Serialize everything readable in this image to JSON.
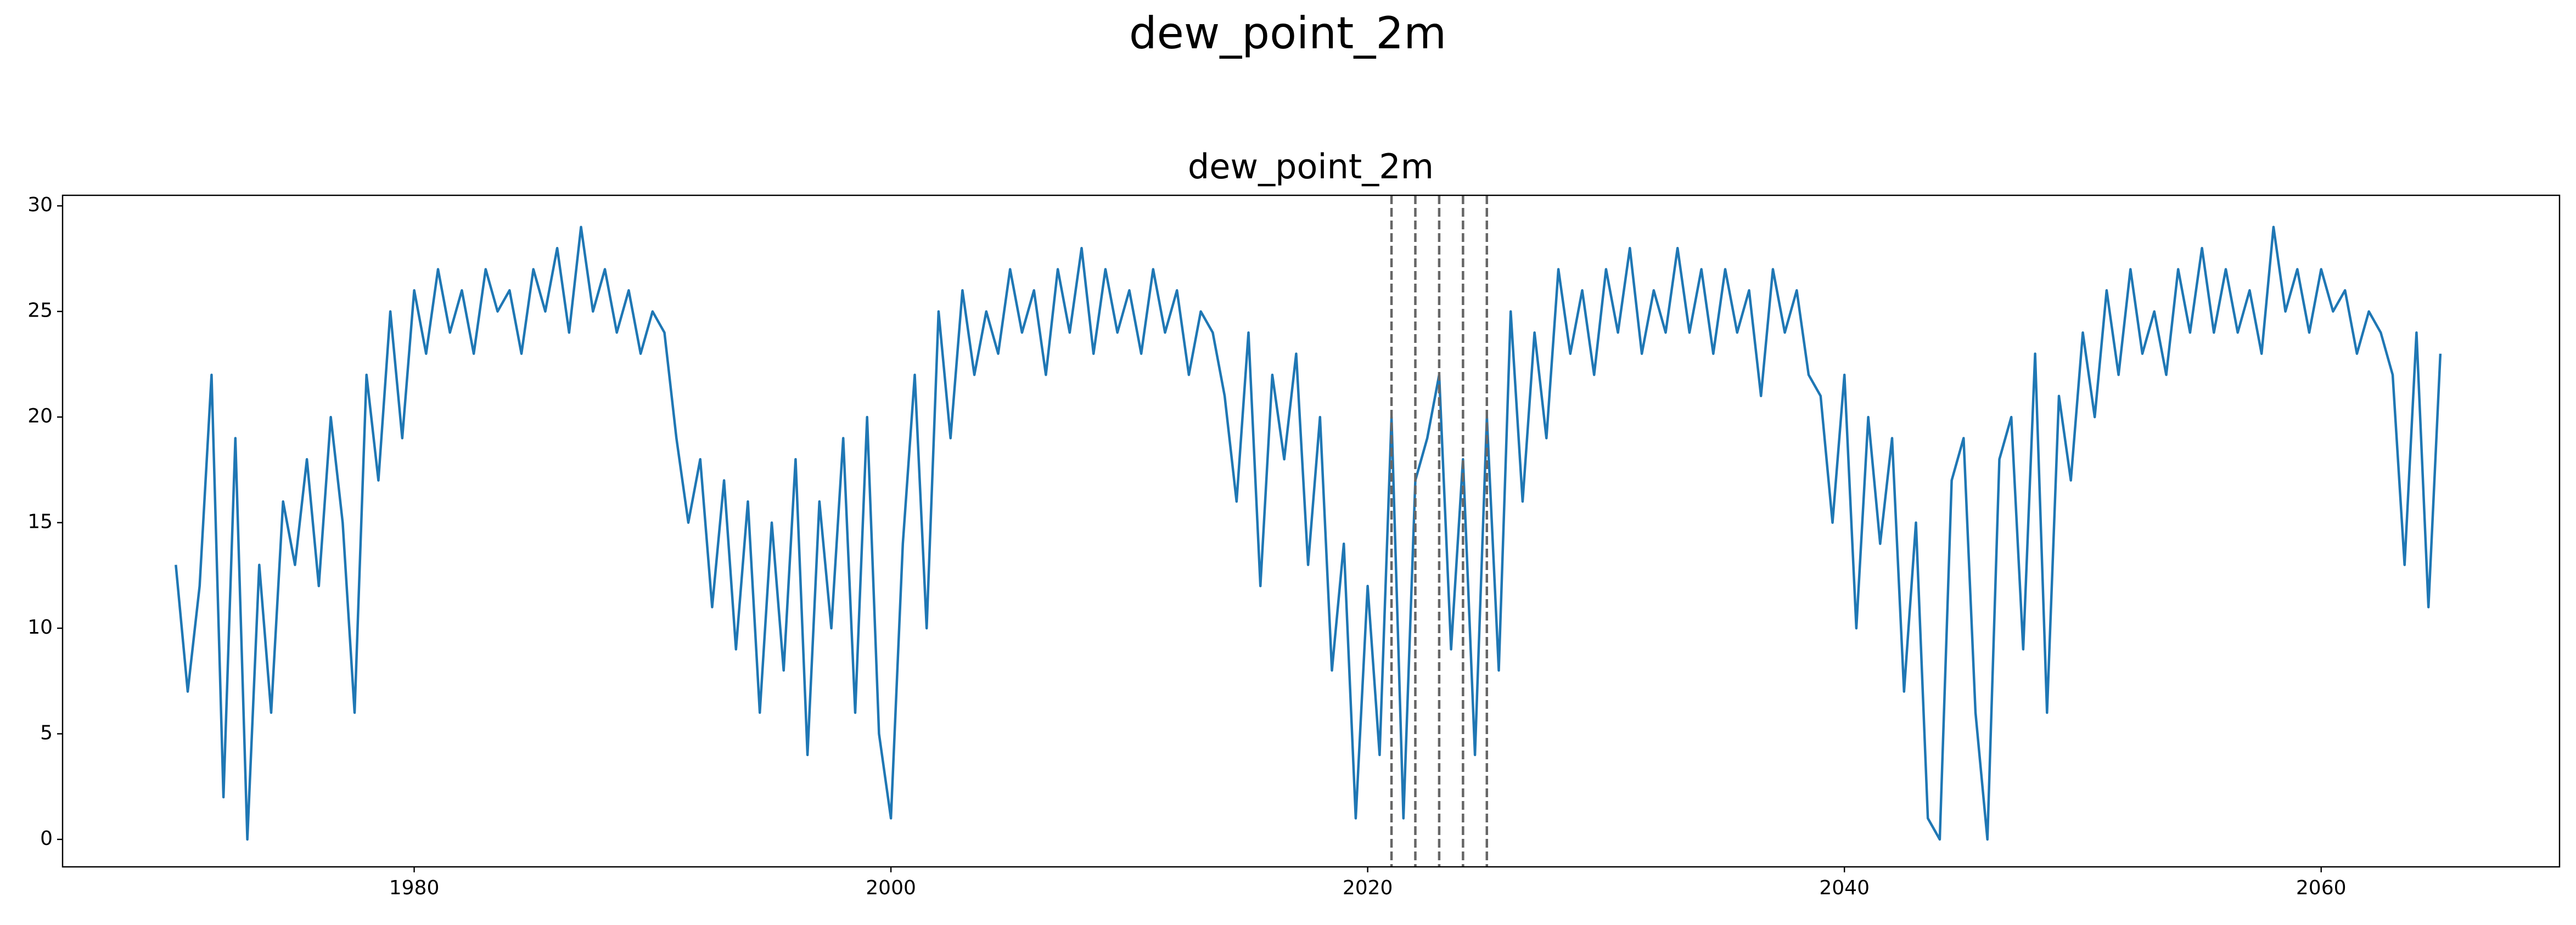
{
  "chart_data": {
    "type": "line",
    "title": "dew_point_2m",
    "subtitle": "dew_point_2m",
    "x": [
      1970.0,
      1970.5,
      1971.0,
      1971.5,
      1972.0,
      1972.5,
      1973.0,
      1973.5,
      1974.0,
      1974.5,
      1975.0,
      1975.5,
      1976.0,
      1976.5,
      1977.0,
      1977.5,
      1978.0,
      1978.5,
      1979.0,
      1979.5,
      1980.0,
      1980.5,
      1981.0,
      1981.5,
      1982.0,
      1982.5,
      1983.0,
      1983.5,
      1984.0,
      1984.5,
      1985.0,
      1985.5,
      1986.0,
      1986.5,
      1987.0,
      1987.5,
      1988.0,
      1988.5,
      1989.0,
      1989.5,
      1990.0,
      1990.5,
      1991.0,
      1991.5,
      1992.0,
      1992.5,
      1993.0,
      1993.5,
      1994.0,
      1994.5,
      1995.0,
      1995.5,
      1996.0,
      1996.5,
      1997.0,
      1997.5,
      1998.0,
      1998.5,
      1999.0,
      1999.5,
      2000.0,
      2000.5,
      2001.0,
      2001.5,
      2002.0,
      2002.5,
      2003.0,
      2003.5,
      2004.0,
      2004.5,
      2005.0,
      2005.5,
      2006.0,
      2006.5,
      2007.0,
      2007.5,
      2008.0,
      2008.5,
      2009.0,
      2009.5,
      2010.0,
      2010.5,
      2011.0,
      2011.5,
      2012.0,
      2012.5,
      2013.0,
      2013.5,
      2014.0,
      2014.5,
      2015.0,
      2015.5,
      2016.0,
      2016.5,
      2017.0,
      2017.5,
      2018.0,
      2018.5,
      2019.0,
      2019.5,
      2020.0,
      2020.5,
      2021.0,
      2021.5,
      2022.0,
      2022.5,
      2023.0,
      2023.5,
      2024.0,
      2024.5,
      2025.0,
      2025.5,
      2026.0,
      2026.5,
      2027.0,
      2027.5,
      2028.0,
      2028.5,
      2029.0,
      2029.5,
      2030.0,
      2030.5,
      2031.0,
      2031.5,
      2032.0,
      2032.5,
      2033.0,
      2033.5,
      2034.0,
      2034.5,
      2035.0,
      2035.5,
      2036.0,
      2036.5,
      2037.0,
      2037.5,
      2038.0,
      2038.5,
      2039.0,
      2039.5,
      2040.0,
      2040.5,
      2041.0,
      2041.5,
      2042.0,
      2042.5,
      2043.0,
      2043.5,
      2044.0,
      2044.5,
      2045.0,
      2045.5,
      2046.0,
      2046.5,
      2047.0,
      2047.5,
      2048.0,
      2048.5,
      2049.0,
      2049.5,
      2050.0,
      2050.5,
      2051.0,
      2051.5,
      2052.0,
      2052.5,
      2053.0,
      2053.5,
      2054.0,
      2054.5,
      2055.0,
      2055.5,
      2056.0,
      2056.5,
      2057.0,
      2057.5,
      2058.0,
      2058.5,
      2059.0,
      2059.5,
      2060.0,
      2060.5,
      2061.0,
      2061.5,
      2062.0,
      2062.5,
      2063.0,
      2063.5,
      2064.0,
      2064.5,
      2065.0
    ],
    "series": [
      {
        "color": "#1f77b4",
        "values": [
          13,
          7,
          12,
          22,
          2,
          19,
          0,
          13,
          6,
          16,
          13,
          18,
          12,
          20,
          15,
          6,
          22,
          17,
          25,
          19,
          26,
          23,
          27,
          24,
          26,
          23,
          27,
          25,
          26,
          23,
          27,
          25,
          28,
          24,
          29,
          25,
          27,
          24,
          26,
          23,
          25,
          24,
          19,
          15,
          18,
          11,
          17,
          9,
          16,
          6,
          15,
          8,
          18,
          4,
          16,
          10,
          19,
          6,
          20,
          5,
          1,
          14,
          22,
          10,
          25,
          19,
          26,
          22,
          25,
          23,
          27,
          24,
          26,
          22,
          27,
          24,
          28,
          23,
          27,
          24,
          26,
          23,
          27,
          24,
          26,
          22,
          25,
          24,
          21,
          16,
          24,
          12,
          22,
          18,
          23,
          13,
          20,
          8,
          14,
          1,
          12,
          4,
          20,
          1,
          17,
          19,
          22,
          9,
          18,
          4,
          20,
          8,
          25,
          16,
          24,
          19,
          27,
          23,
          26,
          22,
          27,
          24,
          28,
          23,
          26,
          24,
          28,
          24,
          27,
          23,
          27,
          24,
          26,
          21,
          27,
          24,
          26,
          22,
          21,
          15,
          22,
          10,
          20,
          14,
          19,
          7,
          15,
          1,
          0,
          17,
          19,
          6,
          0,
          18,
          20,
          9,
          23,
          6,
          21,
          17,
          24,
          20,
          26,
          22,
          27,
          23,
          25,
          22,
          27,
          24,
          28,
          24,
          27,
          24,
          26,
          23,
          29,
          25,
          27,
          24,
          27,
          25,
          26,
          23,
          25,
          24,
          22,
          13,
          24,
          11,
          23
        ]
      }
    ],
    "vlines": [
      2021,
      2022,
      2023,
      2024,
      2025
    ],
    "vline_color": "#666666",
    "xlim": [
      1965.25,
      2070.0
    ],
    "xticks": [
      1980,
      2000,
      2020,
      2040,
      2060
    ],
    "ylim": [
      -1.3,
      30.5
    ],
    "yticks": [
      0,
      5,
      10,
      15,
      20,
      25,
      30
    ]
  }
}
